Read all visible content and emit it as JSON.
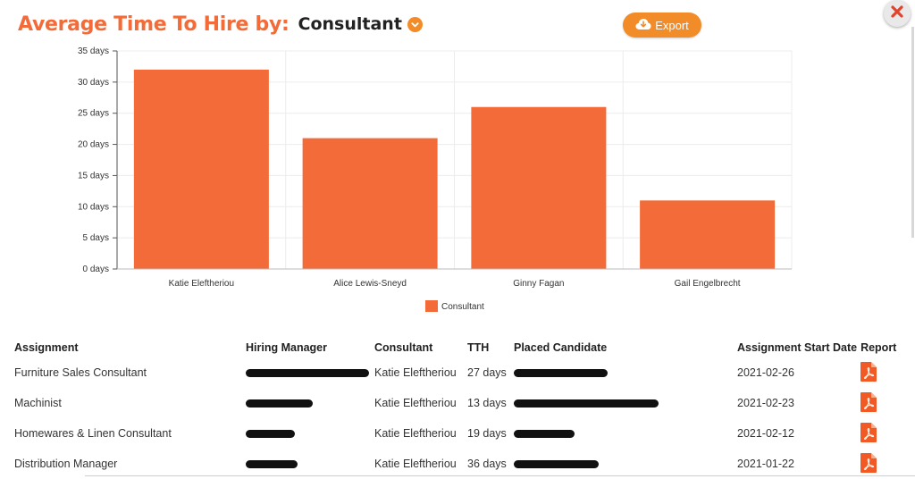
{
  "header": {
    "title": "Average Time To Hire by:",
    "dimension": "Consultant",
    "export_label": "Export"
  },
  "colors": {
    "accent": "#f26b38",
    "button": "#f28c28",
    "bar": "#f26b38"
  },
  "chart_data": {
    "type": "bar",
    "categories": [
      "Katie Eleftheriou",
      "Alice Lewis-Sneyd",
      "Ginny Fagan",
      "Gail Engelbrecht"
    ],
    "series": [
      {
        "name": "Consultant",
        "values": [
          32,
          21,
          26,
          11
        ]
      }
    ],
    "yticks": [
      "0 days",
      "5 days",
      "10 days",
      "15 days",
      "20 days",
      "25 days",
      "30 days",
      "35 days"
    ],
    "ylim": [
      0,
      35
    ],
    "grid": true,
    "legend": "bottom-center"
  },
  "table": {
    "columns": [
      "Assignment",
      "Hiring Manager",
      "Consultant",
      "TTH",
      "Placed Candidate",
      "Assignment Start Date",
      "Report"
    ],
    "rows": [
      {
        "assignment": "Furniture Sales Consultant",
        "consultant": "Katie Eleftheriou",
        "tth": "27 days",
        "start_date": "2021-02-26"
      },
      {
        "assignment": "Machinist",
        "consultant": "Katie Eleftheriou",
        "tth": "13 days",
        "start_date": "2021-02-23"
      },
      {
        "assignment": "Homewares & Linen Consultant",
        "consultant": "Katie Eleftheriou",
        "tth": "19 days",
        "start_date": "2021-02-12"
      },
      {
        "assignment": "Distribution Manager",
        "consultant": "Katie Eleftheriou",
        "tth": "36 days",
        "start_date": "2021-01-22"
      }
    ]
  }
}
